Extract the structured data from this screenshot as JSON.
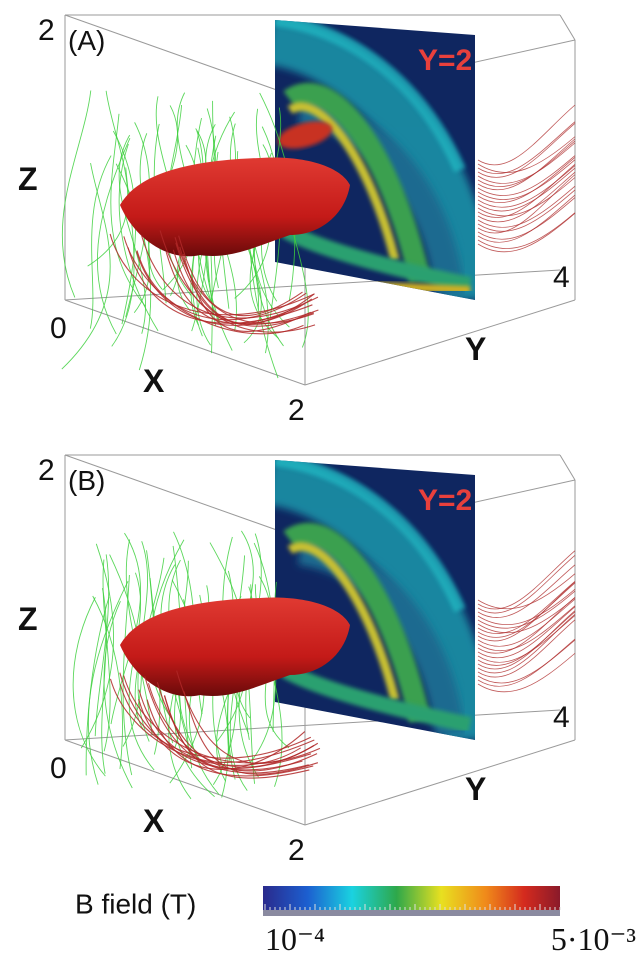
{
  "panels": [
    {
      "label": "(A)",
      "slice_label": "Y=2",
      "axes": {
        "z_top": "2",
        "z_title": "Z",
        "origin": "0",
        "x_title": "X",
        "x_end": "2",
        "y_title": "Y",
        "y_tick": "4"
      }
    },
    {
      "label": "(B)",
      "slice_label": "Y=2",
      "axes": {
        "z_top": "2",
        "z_title": "Z",
        "origin": "0",
        "x_title": "X",
        "x_end": "2",
        "y_title": "Y",
        "y_tick": "4"
      }
    }
  ],
  "colorbar": {
    "title": "B field (T)",
    "min_label": "10⁻⁴",
    "max_label": "5·10⁻³"
  }
}
